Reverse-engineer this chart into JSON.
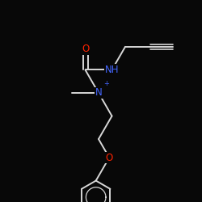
{
  "background_color": "#080808",
  "bond_color": "#d8d8d8",
  "bond_width": 1.4,
  "atom_colors": {
    "N": "#4466ff",
    "O": "#ff2200",
    "Br": "#cc1100",
    "C": "#d8d8d8"
  },
  "fig_size": [
    2.5,
    2.5
  ],
  "dpi": 100
}
